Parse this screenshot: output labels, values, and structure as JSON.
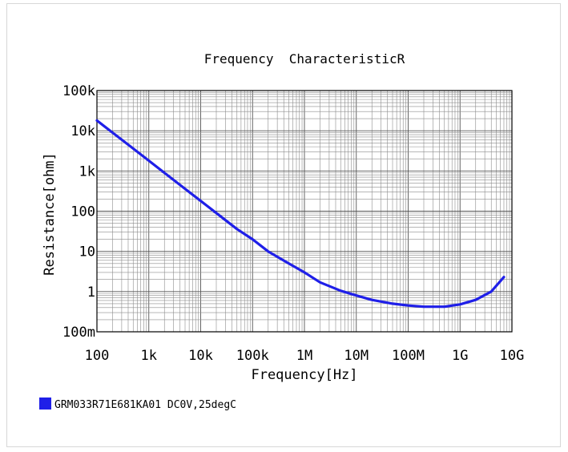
{
  "chart_data": {
    "type": "line",
    "title": "Frequency  CharacteristicR",
    "xlabel": "Frequency[Hz]",
    "ylabel": "Resistance[ohm]",
    "x_scale": "log",
    "y_scale": "log",
    "xlim": [
      100,
      10000000000
    ],
    "ylim": [
      0.1,
      100000
    ],
    "grid": true,
    "legend_position": "bottom-left",
    "x_ticks": [
      {
        "value": 100,
        "label": "100"
      },
      {
        "value": 1000,
        "label": "1k"
      },
      {
        "value": 10000,
        "label": "10k"
      },
      {
        "value": 100000,
        "label": "100k"
      },
      {
        "value": 1000000,
        "label": "1M"
      },
      {
        "value": 10000000,
        "label": "10M"
      },
      {
        "value": 100000000,
        "label": "100M"
      },
      {
        "value": 1000000000,
        "label": "1G"
      },
      {
        "value": 10000000000,
        "label": "10G"
      }
    ],
    "y_ticks": [
      {
        "value": 0.1,
        "label": "100m"
      },
      {
        "value": 1,
        "label": "1"
      },
      {
        "value": 10,
        "label": "10"
      },
      {
        "value": 100,
        "label": "100"
      },
      {
        "value": 1000,
        "label": "1k"
      },
      {
        "value": 10000,
        "label": "10k"
      },
      {
        "value": 100000,
        "label": "100k"
      }
    ],
    "series": [
      {
        "name": "GRM033R71E681KA01 DC0V,25degC",
        "color": "#1f1fe8",
        "x": [
          100,
          200,
          500,
          1000,
          2000,
          5000,
          10000,
          20000,
          50000,
          100000,
          200000,
          500000,
          1000000,
          2000000,
          5000000,
          10000000,
          20000000,
          50000000,
          100000000,
          200000000,
          500000000,
          1000000000,
          2000000000,
          4000000000,
          7000000000
        ],
        "y": [
          18000,
          9000,
          3600,
          1800,
          900,
          360,
          180,
          90,
          36,
          20,
          10,
          5,
          3,
          1.7,
          1.05,
          0.8,
          0.62,
          0.5,
          0.45,
          0.42,
          0.42,
          0.48,
          0.62,
          1.0,
          2.3
        ]
      }
    ]
  }
}
